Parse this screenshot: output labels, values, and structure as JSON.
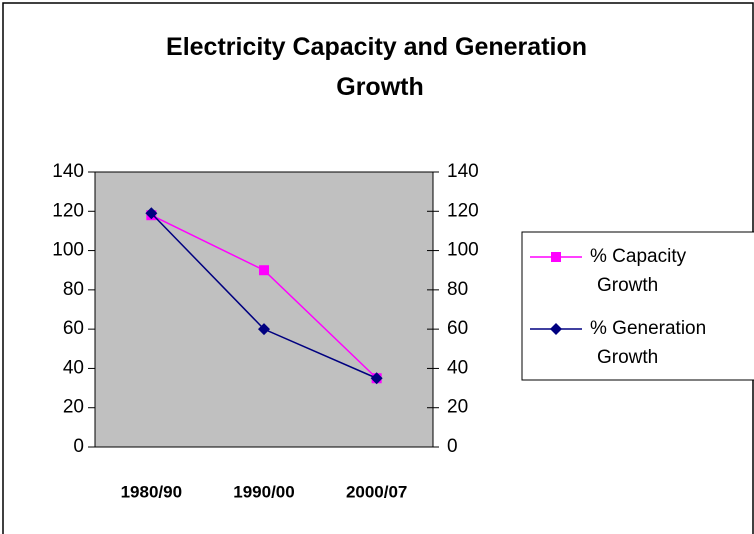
{
  "chart_data": {
    "type": "line",
    "title": "Electricity Capacity and Generation Growth",
    "categories": [
      "1980/90",
      "1990/00",
      "2000/07"
    ],
    "series": [
      {
        "name": "% Capacity Growth",
        "color": "#ff00ff",
        "marker": "square",
        "values": [
          118,
          90,
          35
        ]
      },
      {
        "name": "% Generation Growth",
        "color": "#000080",
        "marker": "diamond",
        "values": [
          119,
          60,
          35
        ]
      }
    ],
    "ylim": [
      0,
      140
    ],
    "yticks": [
      0,
      20,
      40,
      60,
      80,
      100,
      120,
      140
    ],
    "y2lim": [
      0,
      140
    ],
    "y2ticks": [
      0,
      20,
      40,
      60,
      80,
      100,
      120,
      140
    ],
    "grid": false,
    "legend": "right",
    "plot_background": "#c0c0c0"
  }
}
